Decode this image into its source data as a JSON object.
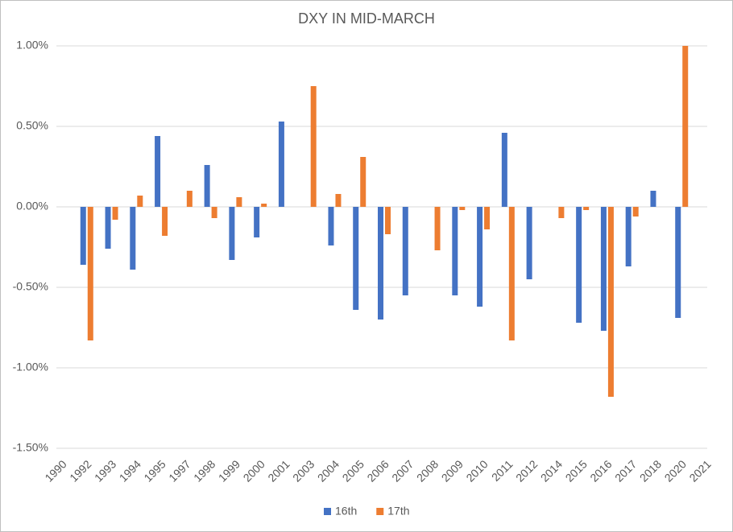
{
  "chart_data": {
    "type": "bar",
    "title": "DXY IN MID-MARCH",
    "categories": [
      "1990",
      "1992",
      "1993",
      "1994",
      "1995",
      "1997",
      "1998",
      "1999",
      "2000",
      "2001",
      "2003",
      "2004",
      "2005",
      "2006",
      "2007",
      "2008",
      "2009",
      "2010",
      "2011",
      "2012",
      "2014",
      "2015",
      "2016",
      "2017",
      "2018",
      "2020",
      "2021"
    ],
    "series": [
      {
        "name": "16th",
        "color": "#4472c4",
        "values": [
          null,
          -0.36,
          -0.26,
          -0.39,
          0.44,
          null,
          0.26,
          -0.33,
          -0.19,
          0.53,
          null,
          -0.24,
          -0.64,
          -0.7,
          -0.55,
          null,
          -0.55,
          -0.62,
          0.46,
          -0.45,
          null,
          -0.72,
          -0.77,
          -0.37,
          0.1,
          -0.69,
          null
        ]
      },
      {
        "name": "17th",
        "color": "#ed7d31",
        "values": [
          null,
          -0.83,
          -0.08,
          0.07,
          -0.18,
          0.1,
          -0.07,
          0.06,
          0.02,
          null,
          0.75,
          0.08,
          0.31,
          -0.17,
          null,
          -0.27,
          -0.02,
          -0.14,
          -0.83,
          null,
          -0.07,
          -0.02,
          -1.18,
          -0.06,
          null,
          1.0,
          null
        ]
      }
    ],
    "ylim": [
      -1.5,
      1.0
    ],
    "yticks": [
      {
        "value": 1,
        "label": "1.00%"
      },
      {
        "value": 0.5,
        "label": "0.50%"
      },
      {
        "value": 0,
        "label": "0.00%"
      },
      {
        "value": -0.5,
        "label": "-0.50%"
      },
      {
        "value": -1,
        "label": "-1.00%"
      },
      {
        "value": -1.5,
        "label": "-1.50%"
      }
    ],
    "grid": true,
    "legend": "bottom"
  }
}
